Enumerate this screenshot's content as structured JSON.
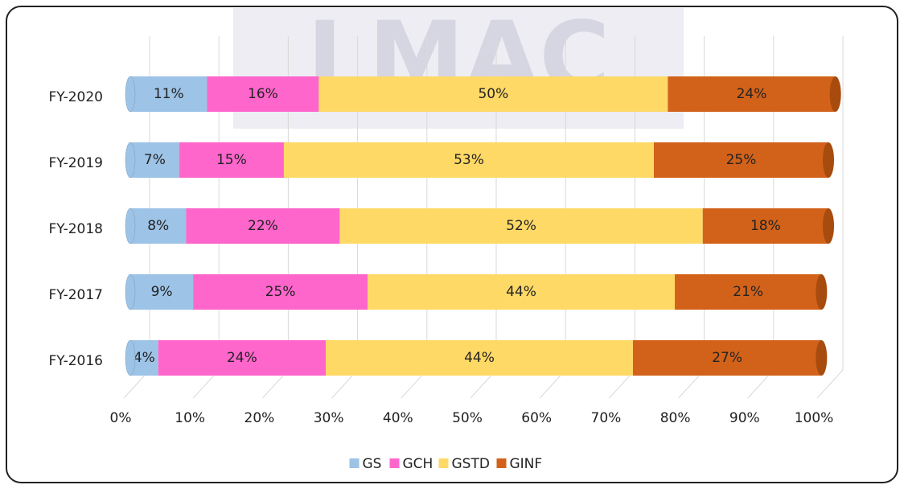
{
  "chart_data": {
    "type": "bar",
    "orientation": "horizontal",
    "stacked": true,
    "watermark": "LMAC",
    "categories": [
      "FY-2016",
      "FY-2017",
      "FY-2018",
      "FY-2019",
      "FY-2020"
    ],
    "series": [
      {
        "name": "GS",
        "color": "#9dc3e6",
        "values": [
          4,
          9,
          8,
          7,
          11
        ]
      },
      {
        "name": "GCH",
        "color": "#ff66cc",
        "values": [
          24,
          25,
          22,
          15,
          16
        ]
      },
      {
        "name": "GSTD",
        "color": "#ffd966",
        "values": [
          44,
          44,
          52,
          53,
          50
        ]
      },
      {
        "name": "GINF",
        "color": "#d2621a",
        "values": [
          27,
          21,
          18,
          25,
          24
        ]
      }
    ],
    "value_labels": [
      [
        "4%",
        "9%",
        "8%",
        "7%",
        "11%"
      ],
      [
        "24%",
        "25%",
        "22%",
        "15%",
        "16%"
      ],
      [
        "44%",
        "44%",
        "52%",
        "53%",
        "50%"
      ],
      [
        "27%",
        "21%",
        "18%",
        "25%",
        "24%"
      ]
    ],
    "xlim": [
      0,
      100
    ],
    "xticks": [
      {
        "value": 0,
        "label": "0%"
      },
      {
        "value": 10,
        "label": "10%"
      },
      {
        "value": 20,
        "label": "20%"
      },
      {
        "value": 30,
        "label": "30%"
      },
      {
        "value": 40,
        "label": "40%"
      },
      {
        "value": 50,
        "label": "50%"
      },
      {
        "value": 60,
        "label": "60%"
      },
      {
        "value": 70,
        "label": "70%"
      },
      {
        "value": 80,
        "label": "80%"
      },
      {
        "value": 90,
        "label": "90%"
      },
      {
        "value": 100,
        "label": "100%"
      }
    ],
    "grid": true,
    "legend": "bottom"
  }
}
